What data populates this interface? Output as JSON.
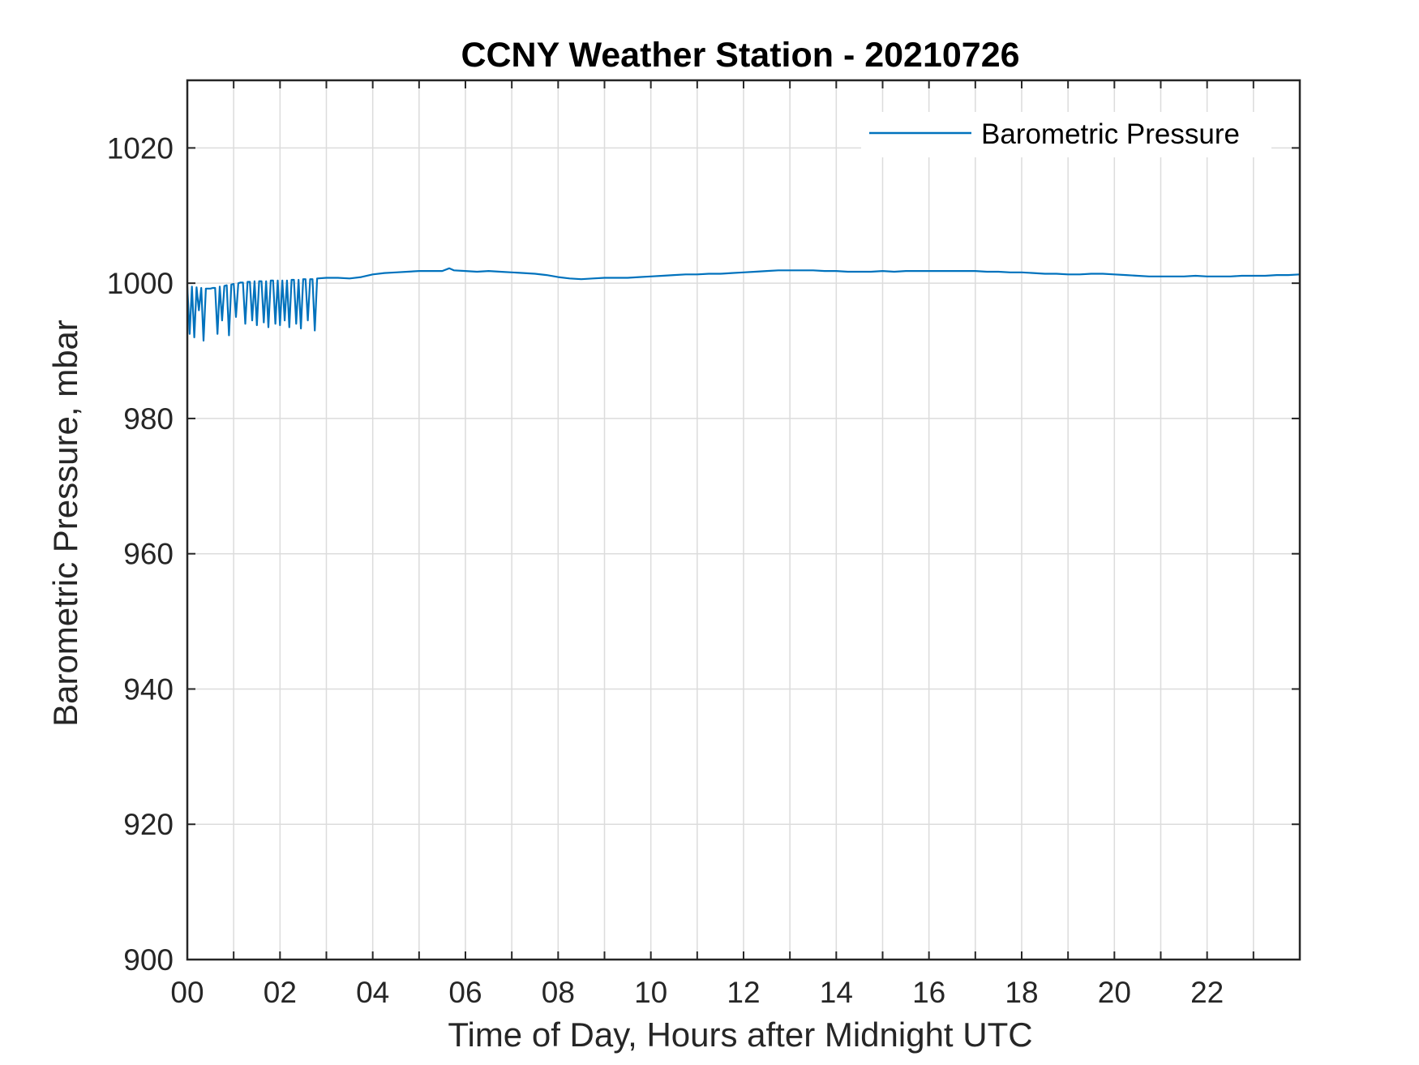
{
  "colors": {
    "series": "#0072BD",
    "axis": "#262626",
    "grid": "#dcdcdc",
    "background": "#ffffff"
  },
  "chart_data": {
    "type": "line",
    "title": "CCNY Weather Station - 20210726",
    "xlabel": "Time of Day, Hours after Midnight UTC",
    "ylabel": "Barometric Pressure, mbar",
    "xlim": [
      0,
      24
    ],
    "ylim": [
      900,
      1030
    ],
    "x_ticks": [
      0,
      2,
      4,
      6,
      8,
      10,
      12,
      14,
      16,
      18,
      20,
      22
    ],
    "x_tick_labels": [
      "00",
      "02",
      "04",
      "06",
      "08",
      "10",
      "12",
      "14",
      "16",
      "18",
      "20",
      "22"
    ],
    "x_minor_ticks": [
      1,
      3,
      5,
      7,
      9,
      11,
      13,
      15,
      17,
      19,
      21,
      23
    ],
    "y_ticks": [
      900,
      920,
      940,
      960,
      980,
      1000,
      1020
    ],
    "y_tick_labels": [
      "900",
      "920",
      "940",
      "960",
      "980",
      "1000",
      "1020"
    ],
    "grid": true,
    "legend_position": "top-right",
    "series": [
      {
        "name": "Barometric Pressure",
        "color": "#0072BD",
        "x": [
          0.0,
          0.05,
          0.1,
          0.15,
          0.2,
          0.25,
          0.3,
          0.35,
          0.4,
          0.45,
          0.5,
          0.55,
          0.6,
          0.65,
          0.7,
          0.75,
          0.8,
          0.85,
          0.9,
          0.95,
          1.0,
          1.05,
          1.1,
          1.15,
          1.2,
          1.25,
          1.3,
          1.35,
          1.4,
          1.45,
          1.5,
          1.55,
          1.6,
          1.65,
          1.7,
          1.75,
          1.8,
          1.85,
          1.9,
          1.95,
          2.0,
          2.05,
          2.1,
          2.15,
          2.2,
          2.25,
          2.3,
          2.35,
          2.4,
          2.45,
          2.5,
          2.55,
          2.6,
          2.65,
          2.7,
          2.75,
          2.8,
          3.0,
          3.25,
          3.5,
          3.75,
          4.0,
          4.25,
          4.5,
          4.75,
          5.0,
          5.25,
          5.5,
          5.65,
          5.75,
          6.0,
          6.25,
          6.5,
          6.75,
          7.0,
          7.25,
          7.5,
          7.75,
          8.0,
          8.25,
          8.5,
          8.75,
          9.0,
          9.25,
          9.5,
          9.75,
          10.0,
          10.25,
          10.5,
          10.75,
          11.0,
          11.25,
          11.5,
          11.75,
          12.0,
          12.25,
          12.5,
          12.75,
          13.0,
          13.25,
          13.5,
          13.75,
          14.0,
          14.25,
          14.5,
          14.75,
          15.0,
          15.25,
          15.5,
          15.75,
          16.0,
          16.25,
          16.5,
          16.75,
          17.0,
          17.25,
          17.5,
          17.75,
          18.0,
          18.25,
          18.5,
          18.75,
          19.0,
          19.25,
          19.5,
          19.75,
          20.0,
          20.25,
          20.5,
          20.75,
          21.0,
          21.25,
          21.5,
          21.75,
          22.0,
          22.25,
          22.5,
          22.75,
          23.0,
          23.25,
          23.5,
          23.75,
          24.0
        ],
        "y": [
          999.5,
          992.5,
          999.5,
          992.0,
          999.4,
          996.0,
          999.3,
          991.5,
          999.2,
          999.2,
          999.2,
          999.3,
          999.3,
          992.5,
          999.5,
          994.5,
          999.6,
          999.7,
          992.3,
          999.8,
          999.9,
          995.0,
          1000.0,
          1000.1,
          1000.1,
          994.0,
          1000.2,
          1000.2,
          994.5,
          1000.3,
          993.8,
          1000.3,
          1000.3,
          994.2,
          1000.3,
          993.5,
          1000.4,
          1000.4,
          994.0,
          1000.4,
          993.8,
          1000.4,
          994.5,
          1000.4,
          993.5,
          1000.5,
          1000.5,
          994.0,
          1000.5,
          993.3,
          1000.6,
          1000.6,
          994.5,
          1000.6,
          1000.6,
          993.0,
          1000.7,
          1000.8,
          1000.8,
          1000.7,
          1000.9,
          1001.3,
          1001.5,
          1001.6,
          1001.7,
          1001.8,
          1001.8,
          1001.8,
          1002.2,
          1001.9,
          1001.8,
          1001.7,
          1001.8,
          1001.7,
          1001.6,
          1001.5,
          1001.4,
          1001.2,
          1000.9,
          1000.7,
          1000.6,
          1000.7,
          1000.8,
          1000.8,
          1000.8,
          1000.9,
          1001.0,
          1001.1,
          1001.2,
          1001.3,
          1001.3,
          1001.4,
          1001.4,
          1001.5,
          1001.6,
          1001.7,
          1001.8,
          1001.9,
          1001.9,
          1001.9,
          1001.9,
          1001.8,
          1001.8,
          1001.7,
          1001.7,
          1001.7,
          1001.8,
          1001.7,
          1001.8,
          1001.8,
          1001.8,
          1001.8,
          1001.8,
          1001.8,
          1001.8,
          1001.7,
          1001.7,
          1001.6,
          1001.6,
          1001.5,
          1001.4,
          1001.4,
          1001.3,
          1001.3,
          1001.4,
          1001.4,
          1001.3,
          1001.2,
          1001.1,
          1001.0,
          1001.0,
          1001.0,
          1001.0,
          1001.1,
          1001.0,
          1001.0,
          1001.0,
          1001.1,
          1001.1,
          1001.1,
          1001.2,
          1001.2,
          1001.3
        ]
      }
    ]
  }
}
